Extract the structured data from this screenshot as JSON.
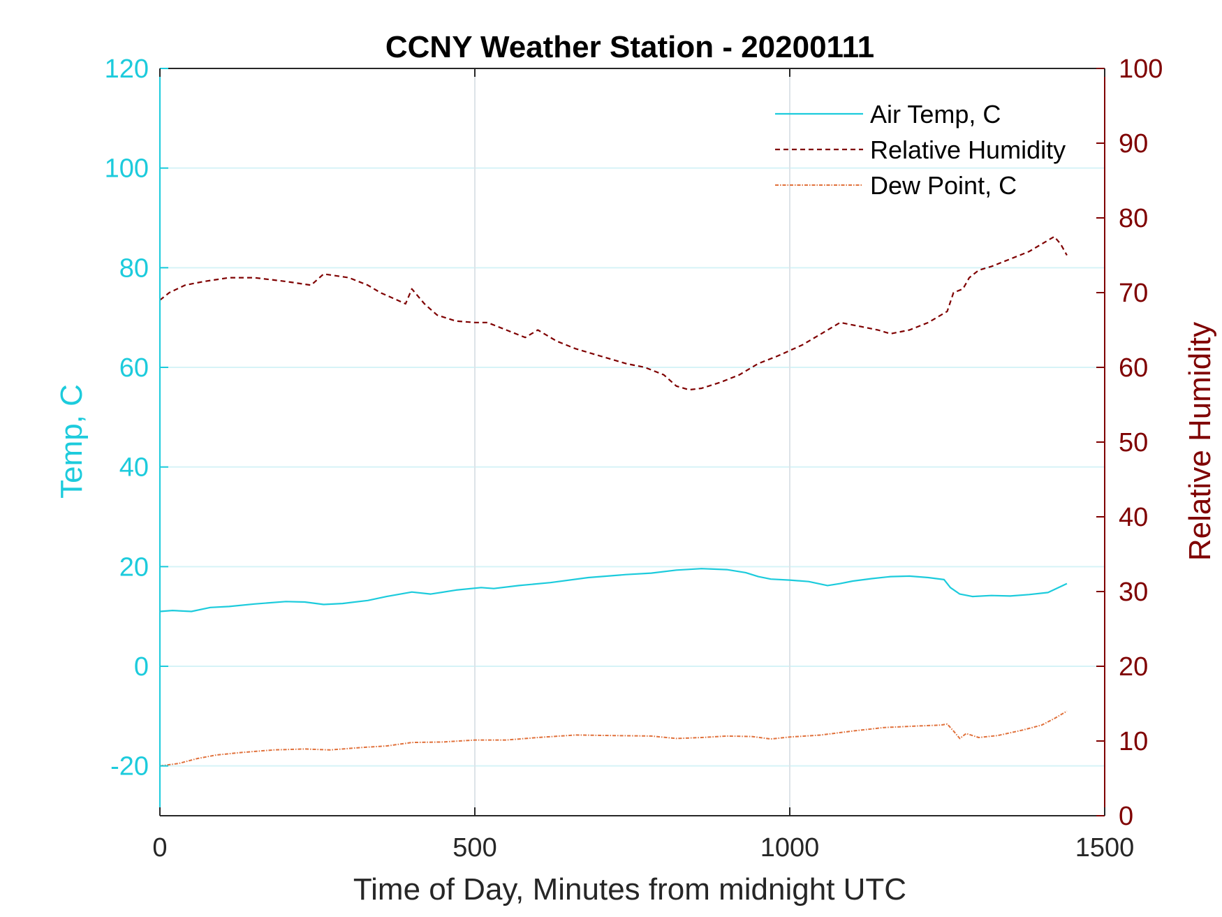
{
  "colors": {
    "air_temp": "#1ccbdc",
    "humidity": "#7f0000",
    "dew_point": "#e0703a",
    "grid_y": "#d6f3f7",
    "grid_x": "#dde3e8",
    "x_axis": "#262626"
  },
  "chart_data": {
    "type": "line",
    "title": "CCNY Weather Station - 20200111",
    "xlabel": "Time of Day, Minutes from midnight UTC",
    "ylabel_left": "Temp, C",
    "ylabel_right": "Relative Humidity",
    "xlim": [
      0,
      1500
    ],
    "ylim_left": [
      -30,
      120
    ],
    "ylim_right": [
      0,
      100
    ],
    "xticks": [
      0,
      500,
      1000,
      1500
    ],
    "yticks_left": [
      -20,
      0,
      20,
      40,
      60,
      80,
      100,
      120
    ],
    "yticks_right": [
      0,
      10,
      20,
      30,
      40,
      50,
      60,
      70,
      80,
      90,
      100
    ],
    "grid": "on",
    "legend_position": "top-right",
    "series": [
      {
        "name": "Air Temp, C",
        "axis": "left",
        "style": "solid",
        "x": [
          0,
          20,
          50,
          80,
          110,
          150,
          200,
          230,
          260,
          290,
          330,
          360,
          400,
          430,
          470,
          510,
          530,
          570,
          620,
          680,
          740,
          780,
          820,
          860,
          900,
          930,
          950,
          970,
          1000,
          1030,
          1060,
          1080,
          1100,
          1130,
          1160,
          1190,
          1220,
          1245,
          1255,
          1270,
          1290,
          1320,
          1350,
          1380,
          1410,
          1430,
          1440
        ],
        "values": [
          11.0,
          11.2,
          11.0,
          11.8,
          12.0,
          12.5,
          13.0,
          12.9,
          12.4,
          12.6,
          13.2,
          14.0,
          14.9,
          14.5,
          15.3,
          15.8,
          15.6,
          16.2,
          16.8,
          17.8,
          18.4,
          18.7,
          19.3,
          19.6,
          19.4,
          18.8,
          18.0,
          17.5,
          17.3,
          17.0,
          16.2,
          16.6,
          17.1,
          17.6,
          18.0,
          18.1,
          17.8,
          17.4,
          15.8,
          14.5,
          14.0,
          14.2,
          14.1,
          14.4,
          14.8,
          16.0,
          16.6
        ]
      },
      {
        "name": "Relative Humidity",
        "axis": "right",
        "style": "dashed",
        "x": [
          0,
          15,
          40,
          70,
          110,
          150,
          200,
          240,
          260,
          300,
          330,
          350,
          390,
          400,
          420,
          440,
          470,
          500,
          520,
          550,
          580,
          600,
          630,
          660,
          700,
          740,
          770,
          800,
          820,
          840,
          860,
          890,
          920,
          950,
          980,
          1020,
          1050,
          1080,
          1110,
          1140,
          1160,
          1190,
          1220,
          1250,
          1260,
          1275,
          1285,
          1300,
          1320,
          1350,
          1380,
          1400,
          1410,
          1420,
          1430,
          1440
        ],
        "values": [
          69.0,
          70.0,
          71.0,
          71.5,
          72.0,
          72.0,
          71.5,
          71.0,
          72.5,
          72.0,
          71.0,
          70.0,
          68.5,
          70.5,
          68.5,
          67.0,
          66.2,
          66.0,
          66.0,
          65.0,
          64.0,
          65.0,
          63.5,
          62.5,
          61.5,
          60.5,
          60.0,
          59.0,
          57.5,
          57.0,
          57.2,
          58.0,
          59.0,
          60.5,
          61.5,
          63.0,
          64.5,
          66.0,
          65.5,
          65.0,
          64.5,
          65.0,
          66.0,
          67.5,
          70.0,
          70.5,
          72.0,
          73.0,
          73.5,
          74.5,
          75.5,
          76.5,
          77.0,
          77.5,
          76.5,
          75.0
        ]
      },
      {
        "name": "Dew Point, C",
        "axis": "left",
        "style": "dashdot",
        "x": [
          0,
          30,
          60,
          90,
          130,
          180,
          230,
          270,
          320,
          360,
          400,
          450,
          500,
          550,
          600,
          660,
          720,
          780,
          820,
          860,
          900,
          940,
          970,
          1000,
          1050,
          1100,
          1150,
          1200,
          1240,
          1250,
          1260,
          1270,
          1280,
          1300,
          1330,
          1370,
          1400,
          1420,
          1440
        ],
        "values": [
          -20.0,
          -19.5,
          -18.5,
          -17.8,
          -17.3,
          -16.8,
          -16.6,
          -16.8,
          -16.3,
          -16.0,
          -15.3,
          -15.2,
          -14.8,
          -14.8,
          -14.3,
          -13.8,
          -13.9,
          -14.0,
          -14.5,
          -14.3,
          -14.0,
          -14.1,
          -14.6,
          -14.2,
          -13.8,
          -13.0,
          -12.3,
          -12.0,
          -11.8,
          -11.6,
          -13.0,
          -14.5,
          -13.5,
          -14.3,
          -13.9,
          -12.8,
          -11.8,
          -10.5,
          -9.0
        ]
      }
    ]
  }
}
